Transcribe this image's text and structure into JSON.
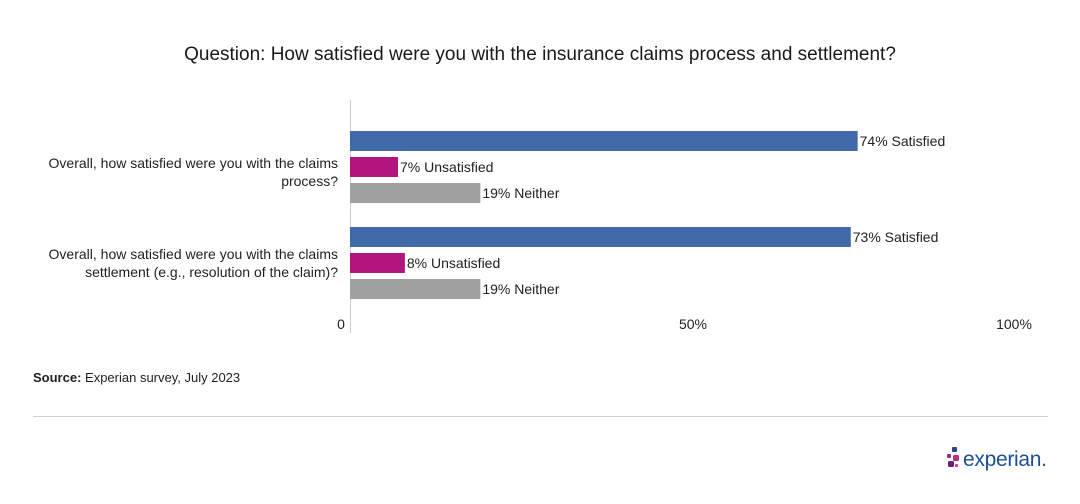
{
  "title": "Question: How satisfied were you with the insurance claims process and settlement?",
  "colors": {
    "Satisfied": "#4169a8",
    "Unsatisfied": "#b3157f",
    "Neither": "#a0a0a0"
  },
  "chart_data": {
    "type": "bar",
    "orientation": "horizontal",
    "categories": [
      "Overall, how satisfied were you with the claims process?",
      "Overall, how satisfied were you with the claims settlement (e.g., resolution of the claim)?"
    ],
    "series": [
      {
        "name": "Satisfied",
        "values": [
          74,
          73
        ],
        "labels": [
          "74% Satisfied",
          "73% Satisfied"
        ]
      },
      {
        "name": "Unsatisfied",
        "values": [
          7,
          8
        ],
        "labels": [
          "7% Unsatisfied",
          "8% Unsatisfied"
        ]
      },
      {
        "name": "Neither",
        "values": [
          19,
          19
        ],
        "labels": [
          "19% Neither",
          "19% Neither"
        ]
      }
    ],
    "xlim": [
      0,
      100
    ],
    "x_ticks": [
      0,
      50,
      100
    ],
    "x_tick_labels": [
      "0",
      "50%",
      "100%"
    ],
    "grid": false
  },
  "source": {
    "label": "Source:",
    "text": " Experian survey, July 2023"
  },
  "logo": {
    "text": "experian."
  }
}
